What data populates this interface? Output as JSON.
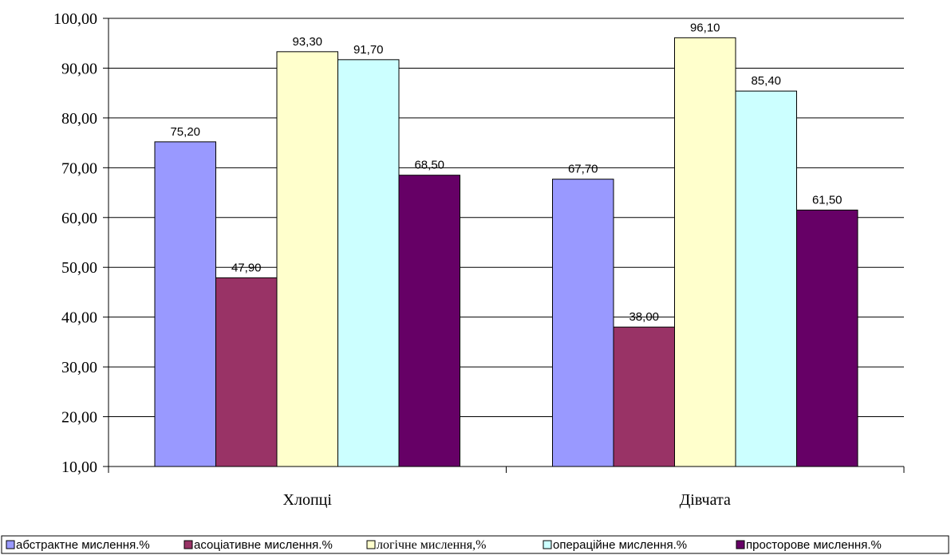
{
  "chart_data": {
    "type": "bar",
    "categories": [
      "Хлопці",
      "Дівчата"
    ],
    "series": [
      {
        "name": "абстрактне мислення.%",
        "values": [
          75.2,
          67.7
        ],
        "color": "#9999ff"
      },
      {
        "name": "асоціативне мислення.%",
        "values": [
          47.9,
          38.0
        ],
        "color": "#993366"
      },
      {
        "name": "логічне мислення,%",
        "values": [
          93.3,
          96.1
        ],
        "color": "#ffffcc"
      },
      {
        "name": "операційне мислення.%",
        "values": [
          91.7,
          85.4
        ],
        "color": "#ccffff"
      },
      {
        "name": "просторове мислення.%",
        "values": [
          68.5,
          61.5
        ],
        "color": "#660066"
      }
    ],
    "data_labels": [
      [
        "75,20",
        "67,70"
      ],
      [
        "47,90",
        "38,00"
      ],
      [
        "93,30",
        "96,10"
      ],
      [
        "91,70",
        "85,40"
      ],
      [
        "68,50",
        "61,50"
      ]
    ],
    "ylim": [
      10,
      100
    ],
    "yticks": [
      10,
      20,
      30,
      40,
      50,
      60,
      70,
      80,
      90,
      100
    ],
    "ytick_labels": [
      "10,00",
      "20,00",
      "30,00",
      "40,00",
      "50,00",
      "60,00",
      "70,00",
      "80,00",
      "90,00",
      "100,00"
    ],
    "grid": true,
    "legend_position": "bottom",
    "title": "",
    "xlabel": "",
    "ylabel": ""
  }
}
